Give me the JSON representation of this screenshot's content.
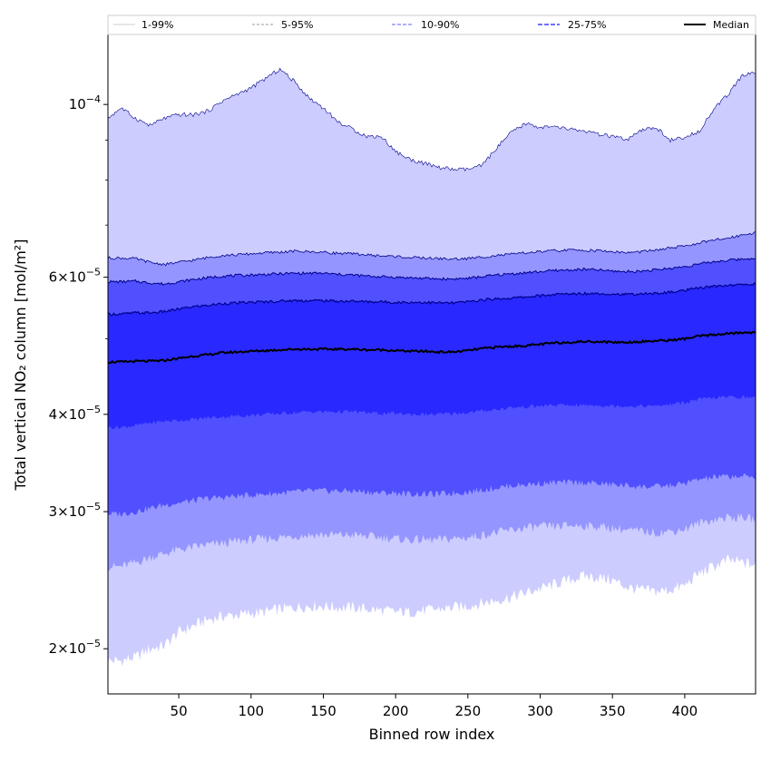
{
  "chart_data": {
    "type": "area",
    "title": "",
    "xlabel": "Binned row index",
    "ylabel": "Total vertical NO₂ column [mol/m²]",
    "yscale": "log",
    "xlim": [
      1,
      449
    ],
    "ylim": [
      1.75e-05,
      0.000123
    ],
    "x_ticks": [
      50,
      100,
      150,
      200,
      250,
      300,
      350,
      400
    ],
    "x_tick_labels": [
      "50",
      "100",
      "150",
      "200",
      "250",
      "300",
      "350",
      "400"
    ],
    "y_ticks": [
      2e-05,
      3e-05,
      4e-05,
      6e-05,
      0.0001
    ],
    "y_tick_labels": [
      {
        "mant": "2",
        "exp": "−5"
      },
      {
        "mant": "3",
        "exp": "−5"
      },
      {
        "mant": "4",
        "exp": "−5"
      },
      {
        "mant": "6",
        "exp": "−5"
      },
      {
        "exp": "−4"
      }
    ],
    "legend_position": "top",
    "legend": [
      "1-99%",
      "5-95%",
      "10-90%",
      "25-75%",
      "Median"
    ],
    "colors": {
      "band_1_99": "#ccccff",
      "band_5_95": "#9595ff",
      "band_10_90": "#5050ff",
      "band_25_75": "#2828ff",
      "line_upper": "#00008b",
      "median": "#000000"
    },
    "x": [
      1,
      10,
      20,
      30,
      40,
      50,
      60,
      70,
      80,
      90,
      100,
      110,
      120,
      130,
      140,
      150,
      160,
      170,
      180,
      190,
      200,
      210,
      220,
      230,
      240,
      250,
      260,
      270,
      280,
      290,
      300,
      310,
      320,
      330,
      340,
      350,
      360,
      370,
      380,
      390,
      400,
      410,
      420,
      430,
      440,
      449
    ],
    "series": [
      {
        "name": "p1",
        "values": [
          1.93e-05,
          1.93e-05,
          1.95e-05,
          2e-05,
          2.02e-05,
          2.1e-05,
          2.14e-05,
          2.18e-05,
          2.2e-05,
          2.21e-05,
          2.22e-05,
          2.23e-05,
          2.25e-05,
          2.26e-05,
          2.27e-05,
          2.27e-05,
          2.26e-05,
          2.26e-05,
          2.25e-05,
          2.24e-05,
          2.23e-05,
          2.23e-05,
          2.24e-05,
          2.25e-05,
          2.26e-05,
          2.27e-05,
          2.29e-05,
          2.31e-05,
          2.33e-05,
          2.36e-05,
          2.39e-05,
          2.42e-05,
          2.45e-05,
          2.48e-05,
          2.47e-05,
          2.45e-05,
          2.4e-05,
          2.38e-05,
          2.37e-05,
          2.38e-05,
          2.41e-05,
          2.5e-05,
          2.55e-05,
          2.6e-05,
          2.58e-05,
          2.56e-05
        ]
      },
      {
        "name": "p5",
        "values": [
          2.55e-05,
          2.55e-05,
          2.58e-05,
          2.62e-05,
          2.65e-05,
          2.68e-05,
          2.7e-05,
          2.72e-05,
          2.73e-05,
          2.75e-05,
          2.76e-05,
          2.77e-05,
          2.78e-05,
          2.79e-05,
          2.8e-05,
          2.8e-05,
          2.8e-05,
          2.8e-05,
          2.79e-05,
          2.78e-05,
          2.77e-05,
          2.76e-05,
          2.76e-05,
          2.76e-05,
          2.77e-05,
          2.78e-05,
          2.8e-05,
          2.82e-05,
          2.84e-05,
          2.86e-05,
          2.87e-05,
          2.87e-05,
          2.88e-05,
          2.88e-05,
          2.87e-05,
          2.86e-05,
          2.84e-05,
          2.83e-05,
          2.82e-05,
          2.83e-05,
          2.85e-05,
          2.9e-05,
          2.93e-05,
          2.95e-05,
          2.95e-05,
          2.93e-05
        ]
      },
      {
        "name": "p10",
        "values": [
          2.98e-05,
          2.98e-05,
          3e-05,
          3.03e-05,
          3.06e-05,
          3.08e-05,
          3.1e-05,
          3.12e-05,
          3.13e-05,
          3.14e-05,
          3.15e-05,
          3.16e-05,
          3.17e-05,
          3.18e-05,
          3.19e-05,
          3.19e-05,
          3.19e-05,
          3.19e-05,
          3.18e-05,
          3.17e-05,
          3.17e-05,
          3.16e-05,
          3.16e-05,
          3.16e-05,
          3.17e-05,
          3.18e-05,
          3.2e-05,
          3.22e-05,
          3.24e-05,
          3.25e-05,
          3.26e-05,
          3.27e-05,
          3.27e-05,
          3.27e-05,
          3.26e-05,
          3.25e-05,
          3.24e-05,
          3.23e-05,
          3.23e-05,
          3.24e-05,
          3.26e-05,
          3.3e-05,
          3.32e-05,
          3.33e-05,
          3.33e-05,
          3.32e-05
        ]
      },
      {
        "name": "p25",
        "values": [
          3.85e-05,
          3.85e-05,
          3.87e-05,
          3.9e-05,
          3.92e-05,
          3.93e-05,
          3.94e-05,
          3.96e-05,
          3.97e-05,
          3.98e-05,
          3.99e-05,
          4e-05,
          4.01e-05,
          4.02e-05,
          4.03e-05,
          4.03e-05,
          4.03e-05,
          4.03e-05,
          4.02e-05,
          4.01e-05,
          4.01e-05,
          4e-05,
          4e-05,
          4e-05,
          4.01e-05,
          4.02e-05,
          4.04e-05,
          4.06e-05,
          4.08e-05,
          4.09e-05,
          4.1e-05,
          4.11e-05,
          4.11e-05,
          4.11e-05,
          4.11e-05,
          4.1e-05,
          4.1e-05,
          4.1e-05,
          4.1e-05,
          4.12e-05,
          4.14e-05,
          4.18e-05,
          4.2e-05,
          4.21e-05,
          4.21e-05,
          4.2e-05
        ]
      },
      {
        "name": "median",
        "values": [
          4.67e-05,
          4.67e-05,
          4.68e-05,
          4.68e-05,
          4.69e-05,
          4.72e-05,
          4.75e-05,
          4.77e-05,
          4.8e-05,
          4.81e-05,
          4.82e-05,
          4.83e-05,
          4.84e-05,
          4.85e-05,
          4.85e-05,
          4.85e-05,
          4.85e-05,
          4.85e-05,
          4.84e-05,
          4.84e-05,
          4.83e-05,
          4.82e-05,
          4.82e-05,
          4.81e-05,
          4.81e-05,
          4.83e-05,
          4.86e-05,
          4.88e-05,
          4.89e-05,
          4.9e-05,
          4.92e-05,
          4.94e-05,
          4.95e-05,
          4.96e-05,
          4.96e-05,
          4.95e-05,
          4.95e-05,
          4.96e-05,
          4.97e-05,
          4.98e-05,
          5e-05,
          5.04e-05,
          5.06e-05,
          5.08e-05,
          5.09e-05,
          5.1e-05
        ]
      },
      {
        "name": "p75",
        "values": [
          5.38e-05,
          5.38e-05,
          5.4e-05,
          5.4e-05,
          5.42e-05,
          5.46e-05,
          5.5e-05,
          5.52e-05,
          5.55e-05,
          5.56e-05,
          5.57e-05,
          5.58e-05,
          5.59e-05,
          5.6e-05,
          5.6e-05,
          5.6e-05,
          5.59e-05,
          5.59e-05,
          5.58e-05,
          5.58e-05,
          5.57e-05,
          5.57e-05,
          5.57e-05,
          5.56e-05,
          5.56e-05,
          5.58e-05,
          5.61e-05,
          5.63e-05,
          5.64e-05,
          5.66e-05,
          5.68e-05,
          5.7e-05,
          5.71e-05,
          5.72e-05,
          5.72e-05,
          5.71e-05,
          5.7e-05,
          5.71e-05,
          5.72e-05,
          5.74e-05,
          5.77e-05,
          5.81e-05,
          5.84e-05,
          5.86e-05,
          5.87e-05,
          5.88e-05
        ]
      },
      {
        "name": "p90",
        "values": [
          5.92e-05,
          5.92e-05,
          5.93e-05,
          5.9e-05,
          5.88e-05,
          5.92e-05,
          5.96e-05,
          5.99e-05,
          6.02e-05,
          6.03e-05,
          6.04e-05,
          6.05e-05,
          6.06e-05,
          6.07e-05,
          6.07e-05,
          6.07e-05,
          6.05e-05,
          6.04e-05,
          6.02e-05,
          6.01e-05,
          6e-05,
          5.99e-05,
          5.98e-05,
          5.97e-05,
          5.97e-05,
          5.98e-05,
          6.01e-05,
          6.04e-05,
          6.06e-05,
          6.08e-05,
          6.1e-05,
          6.12e-05,
          6.13e-05,
          6.14e-05,
          6.13e-05,
          6.11e-05,
          6.1e-05,
          6.11e-05,
          6.13e-05,
          6.16e-05,
          6.19e-05,
          6.24e-05,
          6.28e-05,
          6.31e-05,
          6.33e-05,
          6.35e-05
        ]
      },
      {
        "name": "p95",
        "values": [
          6.35e-05,
          6.35e-05,
          6.34e-05,
          6.27e-05,
          6.23e-05,
          6.27e-05,
          6.31e-05,
          6.36e-05,
          6.4e-05,
          6.41e-05,
          6.43e-05,
          6.45e-05,
          6.46e-05,
          6.48e-05,
          6.47e-05,
          6.46e-05,
          6.44e-05,
          6.43e-05,
          6.41e-05,
          6.39e-05,
          6.38e-05,
          6.36e-05,
          6.35e-05,
          6.34e-05,
          6.33e-05,
          6.34e-05,
          6.37e-05,
          6.4e-05,
          6.42e-05,
          6.45e-05,
          6.47e-05,
          6.49e-05,
          6.5e-05,
          6.5e-05,
          6.49e-05,
          6.47e-05,
          6.45e-05,
          6.47e-05,
          6.5e-05,
          6.54e-05,
          6.58e-05,
          6.64e-05,
          6.69e-05,
          6.74e-05,
          6.8e-05,
          6.85e-05
        ]
      },
      {
        "name": "p99",
        "values": [
          9.6e-05,
          9.9e-05,
          9.6e-05,
          9.4e-05,
          9.6e-05,
          9.7e-05,
          9.7e-05,
          9.8e-05,
          0.000101,
          0.000103,
          0.000105,
          0.000108,
          0.000111,
          0.000107,
          0.000102,
          9.9e-05,
          9.5e-05,
          9.3e-05,
          9.1e-05,
          9.1e-05,
          8.7e-05,
          8.5e-05,
          8.4e-05,
          8.3e-05,
          8.25e-05,
          8.25e-05,
          8.35e-05,
          8.8e-05,
          9.2e-05,
          9.45e-05,
          9.35e-05,
          9.35e-05,
          9.3e-05,
          9.25e-05,
          9.15e-05,
          9.1e-05,
          9e-05,
          9.25e-05,
          9.35e-05,
          9e-05,
          9.05e-05,
          9.25e-05,
          9.85e-05,
          0.000103,
          0.000109,
          0.00011
        ]
      }
    ]
  }
}
